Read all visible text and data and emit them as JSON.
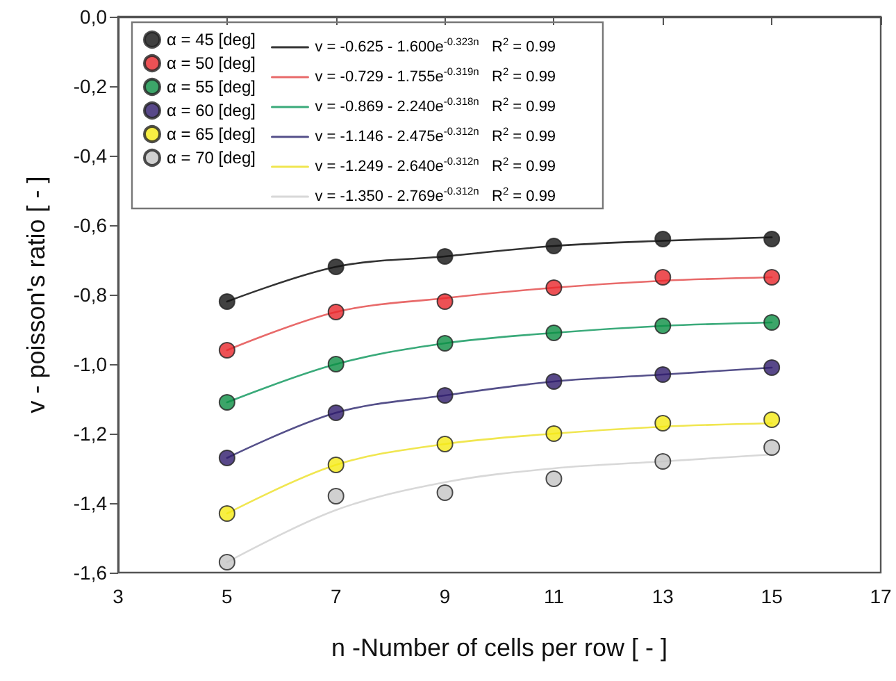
{
  "chart_data": {
    "type": "scatter",
    "xlabel": "n -Number of cells per row [ - ]",
    "ylabel": "v - poisson's ratio [ - ]",
    "x": [
      5,
      7,
      9,
      11,
      13,
      15
    ],
    "xlim": [
      3,
      17
    ],
    "xticks": [
      3,
      5,
      7,
      9,
      11,
      13,
      15,
      17
    ],
    "ylim": [
      -1.6,
      0
    ],
    "yticks": [
      {
        "value": -1.6,
        "label": "-1,6"
      },
      {
        "value": -1.4,
        "label": "-1,4"
      },
      {
        "value": -1.2,
        "label": "-1,2"
      },
      {
        "value": -1.0,
        "label": "-1,0"
      },
      {
        "value": -0.8,
        "label": "-0,8"
      },
      {
        "value": -0.6,
        "label": "-0,6"
      },
      {
        "value": -0.4,
        "label": "-0,4"
      },
      {
        "value": -0.2,
        "label": "-0,2"
      },
      {
        "value": 0,
        "label": "0,0"
      }
    ],
    "grid": false,
    "legend": "top left",
    "marker": "circle",
    "series": [
      {
        "name": "α = 45 [deg]",
        "color": "#111111",
        "values": [
          -0.82,
          -0.72,
          -0.69,
          -0.66,
          -0.64,
          -0.64
        ]
      },
      {
        "name": "α = 50 [deg]",
        "color": "#e8262b",
        "values": [
          -0.96,
          -0.85,
          -0.82,
          -0.78,
          -0.75,
          -0.75
        ]
      },
      {
        "name": "α = 55 [deg]",
        "color": "#0b8f44",
        "values": [
          -1.11,
          -1.0,
          -0.94,
          -0.91,
          -0.89,
          -0.88
        ]
      },
      {
        "name": "α = 60 [deg]",
        "color": "#2e1a6b",
        "values": [
          -1.27,
          -1.14,
          -1.09,
          -1.05,
          -1.03,
          -1.01
        ]
      },
      {
        "name": "α = 65 [deg]",
        "color": "#f5ea14",
        "values": [
          -1.43,
          -1.29,
          -1.23,
          -1.2,
          -1.17,
          -1.16
        ]
      },
      {
        "name": "α = 70 [deg]",
        "color": "#c4c4c4",
        "values": [
          -1.57,
          -1.38,
          -1.37,
          -1.33,
          -1.28,
          -1.24
        ]
      },
      {
        "type": "line",
        "marker": "none",
        "name": "v = -0.625 - 1.600e$^{-0.323n}$   R$^{2}$ = 0.99",
        "color": "#333333",
        "x": [
          5,
          7,
          9,
          11,
          13,
          15
        ],
        "values": [
          -0.82,
          -0.72,
          -0.69,
          -0.66,
          -0.645,
          -0.635
        ]
      },
      {
        "type": "line",
        "marker": "none",
        "name": "v = -0.729 - 1.755e$^{-0.319n}$   R$^{2}$ = 0.99",
        "color": "#e86a6a",
        "x": [
          5,
          7,
          9,
          11,
          13,
          15
        ],
        "values": [
          -0.96,
          -0.85,
          -0.81,
          -0.78,
          -0.76,
          -0.75
        ]
      },
      {
        "type": "line",
        "marker": "none",
        "name": "v = -0.869 - 2.240e$^{-0.318n}$   R$^{2}$ = 0.99",
        "color": "#3aaa7a",
        "x": [
          5,
          7,
          9,
          11,
          13,
          15
        ],
        "values": [
          -1.11,
          -1.0,
          -0.94,
          -0.91,
          -0.89,
          -0.88
        ]
      },
      {
        "type": "line",
        "marker": "none",
        "name": "v = -1.146 - 2.475e$^{-0.312n}$   R$^{2}$ = 0.99",
        "color": "#55508a",
        "x": [
          5,
          7,
          9,
          11,
          13,
          15
        ],
        "values": [
          -1.27,
          -1.14,
          -1.09,
          -1.05,
          -1.03,
          -1.01
        ]
      },
      {
        "type": "line",
        "marker": "none",
        "name": "v = -1.249 - 2.640e$^{-0.312n}$   R$^{2}$ = 0.99",
        "color": "#f0e650",
        "x": [
          5,
          7,
          9,
          11,
          13,
          15
        ],
        "values": [
          -1.43,
          -1.29,
          -1.23,
          -1.2,
          -1.18,
          -1.17
        ]
      },
      {
        "type": "line",
        "marker": "none",
        "name": "v = -1.350 - 2.769e$^{-0.312n}$   R$^{2}$ = 0.99",
        "color": "#d8d8d8",
        "x": [
          5,
          7,
          9,
          11,
          13,
          15
        ],
        "values": [
          -1.57,
          -1.42,
          -1.34,
          -1.3,
          -1.28,
          -1.26
        ]
      }
    ]
  }
}
